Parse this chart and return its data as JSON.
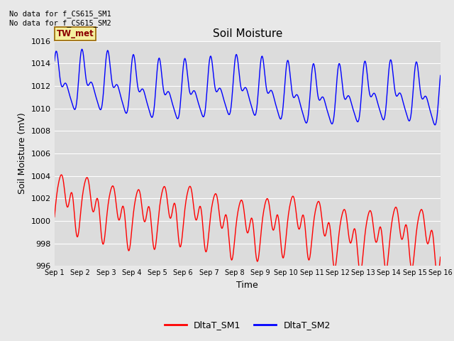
{
  "title": "Soil Moisture",
  "xlabel": "Time",
  "ylabel": "Soil Moisture (mV)",
  "ylim": [
    996,
    1016
  ],
  "yticks": [
    996,
    998,
    1000,
    1002,
    1004,
    1006,
    1008,
    1010,
    1012,
    1014,
    1016
  ],
  "xtick_labels": [
    "Sep 1",
    "Sep 2",
    "Sep 3",
    "Sep 4",
    "Sep 5",
    "Sep 6",
    "Sep 7",
    "Sep 8",
    "Sep 9",
    "Sep 10",
    "Sep 11",
    "Sep 12",
    "Sep 13",
    "Sep 14",
    "Sep 15",
    "Sep 16"
  ],
  "annotation_text": "No data for f_CS615_SM1\nNo data for f_CS615_SM2",
  "label_box_text": "TW_met",
  "legend_labels": [
    "DltaT_SM1",
    "DltaT_SM2"
  ],
  "line_colors": [
    "red",
    "blue"
  ],
  "background_color": "#e8e8e8",
  "plot_bg_color": "#dcdcdc",
  "grid_color": "white",
  "title_fontsize": 11,
  "axis_label_fontsize": 9,
  "tick_fontsize": 8,
  "xtick_fontsize": 7,
  "legend_fontsize": 9
}
